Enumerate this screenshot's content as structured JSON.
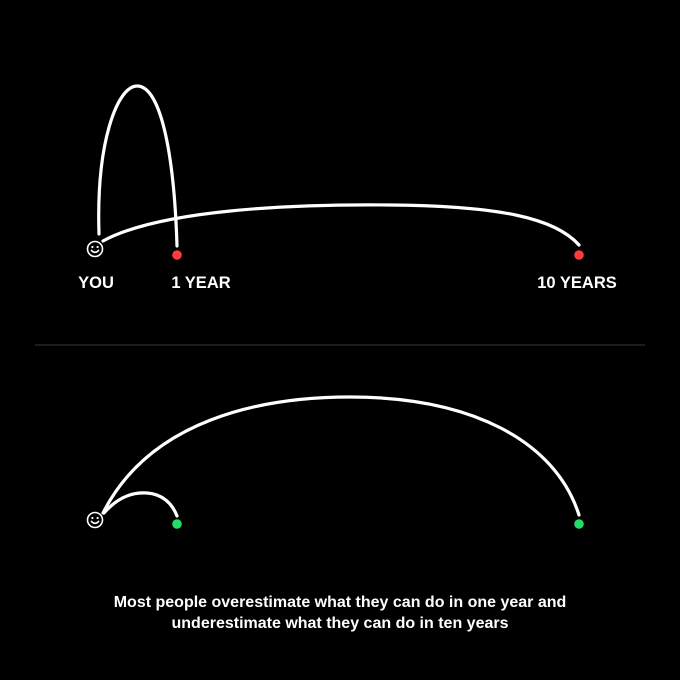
{
  "top_diagram": {
    "start_label": "YOU",
    "short_term_label": "1 YEAR",
    "long_term_label": "10 YEARS",
    "start_icon": "smiley-face-icon",
    "marker_color": "#ff3b3b"
  },
  "bottom_diagram": {
    "start_icon": "smiley-face-icon",
    "marker_color": "#22dd66"
  },
  "caption": {
    "line1": "Most people overestimate what they can do in one year and",
    "line2": "underestimate what they can do in ten years"
  },
  "colors": {
    "background": "#000000",
    "line": "#ffffff",
    "divider": "#3a3a3a",
    "expectation_marker": "#ff3b3b",
    "reality_marker": "#22dd66"
  }
}
